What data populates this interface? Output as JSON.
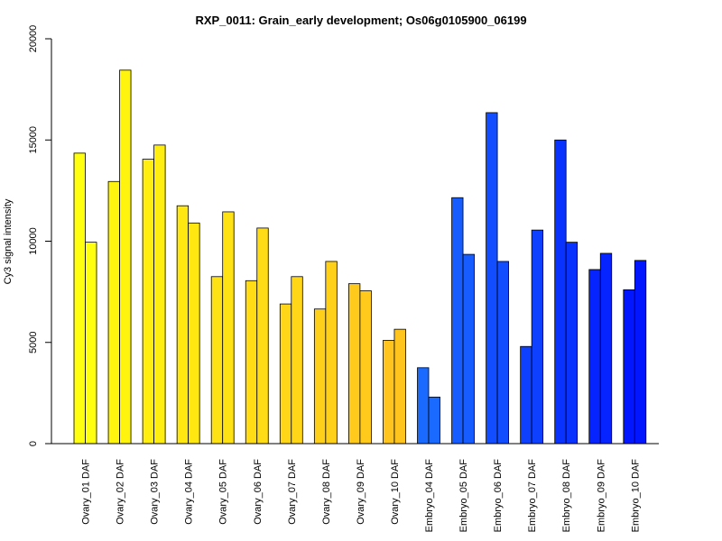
{
  "chart_data": {
    "type": "bar",
    "title": "RXP_0011: Grain_early development; Os06g0105900_06199",
    "xlabel": "",
    "ylabel": "Cy3 signal intensity",
    "ylim": [
      0,
      20000
    ],
    "yticks": [
      0,
      5000,
      10000,
      15000,
      20000
    ],
    "grid": false,
    "categories": [
      "Ovary_01 DAF",
      "Ovary_02 DAF",
      "Ovary_03 DAF",
      "Ovary_04 DAF",
      "Ovary_05 DAF",
      "Ovary_06 DAF",
      "Ovary_07 DAF",
      "Ovary_08 DAF",
      "Ovary_09 DAF",
      "Ovary_10 DAF",
      "Embryo_04 DAF",
      "Embryo_05 DAF",
      "Embryo_06 DAF",
      "Embryo_07 DAF",
      "Embryo_08 DAF",
      "Embryo_09 DAF",
      "Embryo_10 DAF"
    ],
    "colors": [
      "#ffff0f",
      "#fff40d",
      "#ffee10",
      "#ffe812",
      "#ffe214",
      "#ffdc16",
      "#ffd618",
      "#ffd01a",
      "#ffca1c",
      "#ffc41e",
      "#1a6aff",
      "#165cff",
      "#124eff",
      "#0e40ff",
      "#0a32ff",
      "#0624ff",
      "#0216ff"
    ],
    "series": [
      {
        "values": [
          14350,
          12950,
          14050,
          11750,
          8250,
          8050,
          6900,
          6650,
          7900,
          5100,
          3750,
          12150,
          16350,
          4800,
          15000,
          8600,
          7600
        ]
      },
      {
        "values": [
          9950,
          18450,
          14750,
          10900,
          11450,
          10650,
          8250,
          9000,
          7550,
          5650,
          2300,
          9350,
          9000,
          10550,
          9950,
          9400,
          9050
        ]
      }
    ]
  }
}
